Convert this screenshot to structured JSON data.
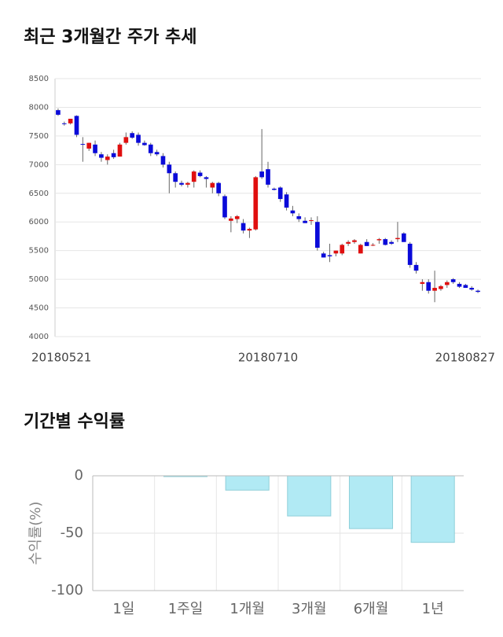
{
  "chart_data": [
    {
      "type": "candlestick",
      "title": "최근 3개월간 주가 추세",
      "categories": [
        "20180521",
        null,
        null,
        null,
        null,
        null,
        null,
        null,
        null,
        null,
        null,
        null,
        null,
        null,
        null,
        null,
        null,
        null,
        null,
        null,
        null,
        null,
        null,
        null,
        null,
        null,
        null,
        null,
        null,
        null,
        null,
        null,
        null,
        null,
        "20180710",
        null,
        null,
        null,
        null,
        null,
        null,
        null,
        null,
        null,
        null,
        null,
        null,
        null,
        null,
        null,
        null,
        null,
        null,
        null,
        null,
        null,
        null,
        null,
        null,
        null,
        null,
        null,
        null,
        null,
        null,
        null,
        null,
        null,
        "20180827"
      ],
      "open": [
        7950,
        7720,
        7720,
        7850,
        7360,
        7280,
        7350,
        7180,
        7080,
        7200,
        7140,
        7380,
        7550,
        7520,
        7380,
        7350,
        7220,
        7150,
        7000,
        6850,
        6680,
        6650,
        6700,
        6860,
        6780,
        6600,
        6680,
        6450,
        6020,
        6050,
        5980,
        5850,
        5870,
        6880,
        6920,
        6580,
        6600,
        6480,
        6200,
        6100,
        6020,
        6020,
        6000,
        5450,
        5420,
        5450,
        5450,
        5620,
        5650,
        5450,
        5650,
        5600,
        5680,
        5700,
        5650,
        5700,
        5800,
        5620,
        5250,
        4920,
        4950,
        4800,
        4830,
        4900,
        5000,
        4920,
        4900,
        4850,
        4800
      ],
      "high": [
        7980,
        7750,
        7800,
        7860,
        7480,
        7380,
        7420,
        7220,
        7180,
        7260,
        7380,
        7560,
        7580,
        7560,
        7420,
        7380,
        7260,
        7200,
        7050,
        6880,
        6720,
        6700,
        6900,
        6900,
        6800,
        6700,
        6700,
        6480,
        6100,
        6120,
        6050,
        5900,
        6800,
        7620,
        7050,
        6600,
        6620,
        6520,
        6280,
        6150,
        6080,
        6080,
        6100,
        5480,
        5620,
        5500,
        5620,
        5680,
        5700,
        5620,
        5700,
        5630,
        5720,
        5720,
        5680,
        6000,
        5820,
        5650,
        5300,
        5000,
        5000,
        5150,
        4900,
        4980,
        5020,
        4950,
        4920,
        4880,
        4820
      ],
      "low": [
        7850,
        7680,
        7700,
        7480,
        7050,
        7240,
        7150,
        7050,
        7000,
        7100,
        7140,
        7350,
        7450,
        7330,
        7330,
        7150,
        7150,
        6950,
        6500,
        6600,
        6620,
        6600,
        6600,
        6780,
        6600,
        6500,
        6450,
        6050,
        5820,
        5980,
        5800,
        5720,
        5850,
        6750,
        6600,
        6550,
        6350,
        6200,
        6100,
        6000,
        5980,
        5950,
        5500,
        5380,
        5300,
        5400,
        5420,
        5580,
        5620,
        5450,
        5580,
        5580,
        5620,
        5590,
        5600,
        5650,
        5650,
        5200,
        5100,
        4800,
        4750,
        4600,
        4800,
        4850,
        4920,
        4850,
        4850,
        4800,
        4760
      ],
      "close": [
        7870,
        7710,
        7800,
        7520,
        7350,
        7380,
        7200,
        7120,
        7140,
        7130,
        7350,
        7480,
        7470,
        7380,
        7340,
        7200,
        7180,
        7000,
        6850,
        6700,
        6650,
        6680,
        6880,
        6800,
        6750,
        6680,
        6500,
        6080,
        6060,
        6100,
        5850,
        5880,
        6780,
        6780,
        6650,
        6560,
        6400,
        6250,
        6150,
        6050,
        5980,
        6030,
        5550,
        5380,
        5400,
        5500,
        5600,
        5650,
        5680,
        5600,
        5580,
        5600,
        5700,
        5600,
        5620,
        5720,
        5650,
        5250,
        5150,
        4950,
        4800,
        4850,
        4880,
        4950,
        4950,
        4870,
        4850,
        4820,
        4780
      ],
      "up_color": "#e00f0f",
      "down_color": "#0a0ad9",
      "ylim": [
        4000,
        8500
      ],
      "yticks": [
        4000,
        4500,
        5000,
        5500,
        6000,
        6500,
        7000,
        7500,
        8000,
        8500
      ],
      "grid": true
    },
    {
      "type": "bar",
      "title": "기간별 수익률",
      "y_label": "수익률(%)",
      "categories": [
        "1일",
        "1주일",
        "1개월",
        "3개월",
        "6개월",
        "1년"
      ],
      "values": [
        0,
        -0.7,
        -12.5,
        -35,
        -46,
        -58
      ],
      "color": "#b1eaf4",
      "ylim": [
        -100,
        0
      ],
      "yticks": [
        0,
        -50,
        -100
      ],
      "grid": true
    }
  ]
}
